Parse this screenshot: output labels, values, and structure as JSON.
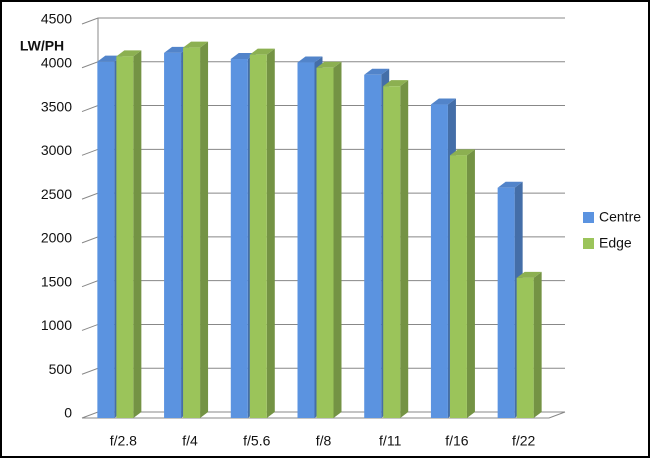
{
  "chart_data": {
    "type": "bar3d",
    "y_label": "LW/PH",
    "categories": [
      "f/2.8",
      "f/4",
      "f/5.6",
      "f/8",
      "f/11",
      "f/16",
      "f/22"
    ],
    "series": [
      {
        "name": "Centre",
        "color": "#5b93e0",
        "values": [
          4070,
          4170,
          4100,
          4060,
          3920,
          3580,
          2630
        ]
      },
      {
        "name": "Edge",
        "color": "#9bc45a",
        "values": [
          4130,
          4230,
          4150,
          4000,
          3790,
          3000,
          1600
        ]
      }
    ],
    "ylim": [
      0,
      4500
    ],
    "yticks": [
      0,
      500,
      1000,
      1500,
      2000,
      2500,
      3000,
      3500,
      4000,
      4500
    ],
    "grid": true,
    "legend": "right"
  }
}
